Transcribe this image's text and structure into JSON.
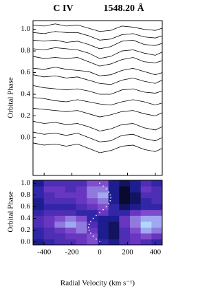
{
  "chart_data": [
    {
      "type": "line",
      "title": "C IV",
      "subtitle": "1548.20 Å",
      "ylabel": "Orbital Phase",
      "xlim": [
        -480,
        450
      ],
      "ylim": [
        -0.35,
        1.08
      ],
      "xticks": [
        -400,
        -200,
        0,
        200,
        400
      ],
      "yticks": [
        {
          "value": 0,
          "label": "0.0"
        },
        0.2,
        0.4,
        0.6,
        0.8,
        {
          "value": 1,
          "label": "1.0"
        }
      ],
      "x": [
        -480,
        -400,
        -320,
        -240,
        -160,
        -80,
        0,
        80,
        160,
        240,
        320,
        400,
        450
      ],
      "color": "#000000",
      "series": [
        {
          "values": [
            1.04,
            1.03,
            1.05,
            1.03,
            1.04,
            1.01,
            0.98,
            0.99,
            1.03,
            1.02,
            1.0,
            0.99,
            1.01
          ]
        },
        {
          "values": [
            0.97,
            0.96,
            0.98,
            0.97,
            0.97,
            0.94,
            0.9,
            0.91,
            0.95,
            0.96,
            0.93,
            0.92,
            0.94
          ]
        },
        {
          "values": [
            0.9,
            0.89,
            0.9,
            0.88,
            0.89,
            0.86,
            0.82,
            0.84,
            0.89,
            0.9,
            0.86,
            0.85,
            0.87
          ]
        },
        {
          "values": [
            0.82,
            0.81,
            0.83,
            0.82,
            0.81,
            0.78,
            0.73,
            0.75,
            0.8,
            0.81,
            0.78,
            0.76,
            0.79
          ]
        },
        {
          "values": [
            0.75,
            0.73,
            0.74,
            0.73,
            0.74,
            0.7,
            0.66,
            0.68,
            0.72,
            0.74,
            0.7,
            0.69,
            0.71
          ]
        },
        {
          "values": [
            0.64,
            0.63,
            0.65,
            0.63,
            0.62,
            0.61,
            0.57,
            0.58,
            0.62,
            0.64,
            0.61,
            0.58,
            0.6
          ]
        },
        {
          "values": [
            0.58,
            0.56,
            0.57,
            0.55,
            0.56,
            0.53,
            0.5,
            0.49,
            0.53,
            0.55,
            0.52,
            0.5,
            0.53
          ]
        },
        {
          "values": [
            0.48,
            0.46,
            0.45,
            0.44,
            0.45,
            0.43,
            0.4,
            0.4,
            0.44,
            0.45,
            0.42,
            0.41,
            0.43
          ]
        },
        {
          "values": [
            0.37,
            0.36,
            0.34,
            0.33,
            0.35,
            0.33,
            0.31,
            0.3,
            0.33,
            0.35,
            0.33,
            0.3,
            0.32
          ]
        },
        {
          "values": [
            0.27,
            0.26,
            0.25,
            0.24,
            0.25,
            0.22,
            0.19,
            0.21,
            0.24,
            0.25,
            0.22,
            0.2,
            0.23
          ]
        },
        {
          "values": [
            0.15,
            0.13,
            0.14,
            0.12,
            0.13,
            0.1,
            0.06,
            0.08,
            0.12,
            0.13,
            0.09,
            0.07,
            0.1
          ]
        },
        {
          "values": [
            0.05,
            0.03,
            0.04,
            0.02,
            0.04,
            0.0,
            -0.04,
            -0.03,
            0.02,
            0.03,
            -0.01,
            -0.03,
            0.0
          ]
        },
        {
          "values": [
            -0.05,
            -0.07,
            -0.06,
            -0.08,
            -0.06,
            -0.1,
            -0.14,
            -0.12,
            -0.08,
            -0.07,
            -0.11,
            -0.13,
            -0.1
          ]
        }
      ]
    },
    {
      "type": "heatmap",
      "ylabel": "Orbital Phase",
      "xlabel": "Radial Velocity (km s⁻¹)",
      "xlim": [
        -480,
        450
      ],
      "ylim": [
        -0.05,
        1.05
      ],
      "xticks": [
        -400,
        -200,
        0,
        200,
        400
      ],
      "yticks": [
        {
          "value": 0,
          "label": "0.0"
        },
        0.2,
        0.4,
        0.6,
        0.8,
        {
          "value": 1,
          "label": "1.0"
        }
      ],
      "colormap": [
        "#000000",
        "#2020a0",
        "#7a3cc8",
        "#b0d8ff"
      ],
      "velocities": [
        -441,
        -364,
        -286,
        -209,
        -131,
        -54,
        24,
        101,
        179,
        256,
        334,
        411
      ],
      "phases": [
        0.0,
        0.1,
        0.2,
        0.3,
        0.4,
        0.5,
        0.6,
        0.7,
        0.8,
        0.9,
        1.0
      ],
      "z": [
        [
          0.3,
          0.4,
          0.5,
          0.5,
          0.6,
          0.7,
          0.4,
          0.3,
          0.5,
          0.6,
          0.5,
          0.4
        ],
        [
          0.4,
          0.5,
          0.5,
          0.6,
          0.6,
          0.7,
          0.3,
          0.2,
          0.5,
          0.6,
          0.7,
          0.6
        ],
        [
          0.4,
          0.5,
          0.6,
          0.7,
          0.8,
          0.6,
          0.3,
          0.2,
          0.5,
          0.7,
          0.9,
          0.8
        ],
        [
          0.5,
          0.6,
          0.8,
          0.9,
          0.8,
          0.5,
          0.3,
          0.2,
          0.6,
          0.8,
          1.0,
          0.9
        ],
        [
          0.5,
          0.6,
          0.7,
          0.8,
          0.7,
          0.4,
          0.3,
          0.3,
          0.6,
          0.8,
          0.9,
          0.9
        ],
        [
          0.4,
          0.5,
          0.5,
          0.5,
          0.4,
          0.4,
          0.6,
          0.4,
          0.4,
          0.6,
          0.7,
          0.7
        ],
        [
          0.3,
          0.4,
          0.4,
          0.4,
          0.5,
          0.6,
          0.7,
          0.4,
          0.2,
          0.3,
          0.4,
          0.4
        ],
        [
          0.3,
          0.5,
          0.5,
          0.5,
          0.6,
          0.7,
          0.8,
          0.3,
          0.1,
          0.2,
          0.4,
          0.5
        ],
        [
          0.4,
          0.5,
          0.6,
          0.6,
          0.6,
          0.8,
          0.9,
          0.3,
          0.1,
          0.2,
          0.5,
          0.5
        ],
        [
          0.4,
          0.6,
          0.6,
          0.5,
          0.6,
          0.8,
          0.8,
          0.3,
          0.1,
          0.3,
          0.6,
          0.5
        ],
        [
          0.3,
          0.5,
          0.5,
          0.5,
          0.5,
          0.7,
          0.7,
          0.3,
          0.2,
          0.3,
          0.5,
          0.4
        ]
      ],
      "curve": {
        "color": "#ffffff",
        "x": [
          0,
          -25,
          -47,
          -65,
          -76,
          -80,
          -76,
          -65,
          -47,
          -25,
          0,
          25,
          47,
          65,
          76,
          80,
          76,
          65,
          47,
          25,
          0
        ],
        "y": [
          0,
          0.05,
          0.1,
          0.15,
          0.2,
          0.25,
          0.3,
          0.35,
          0.4,
          0.45,
          0.5,
          0.55,
          0.6,
          0.65,
          0.7,
          0.75,
          0.8,
          0.85,
          0.9,
          0.95,
          1.0
        ]
      }
    }
  ]
}
